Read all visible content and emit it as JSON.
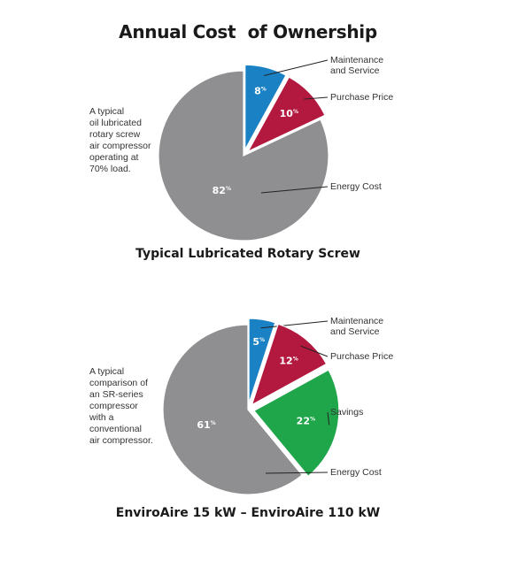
{
  "title": "Annual Cost  of Ownership",
  "chart_data": [
    {
      "type": "pie",
      "caption": "Typical Lubricated Rotary Screw",
      "description": [
        "A typical",
        "oil lubricated",
        "rotary screw",
        "air compressor",
        "operating at",
        "70% load."
      ],
      "slices": [
        {
          "label": [
            "Maintenance",
            "and Service"
          ],
          "value": 8,
          "color": "#1a82c4",
          "exploded": true
        },
        {
          "label": [
            "Purchase Price"
          ],
          "value": 10,
          "color": "#b3183f",
          "exploded": true
        },
        {
          "label": [
            "Energy Cost"
          ],
          "value": 82,
          "color": "#8f8f91",
          "exploded": false
        }
      ],
      "value_suffix": "%"
    },
    {
      "type": "pie",
      "caption": "EnviroAire 15 kW – EnviroAire 110 kW",
      "description": [
        "A typical",
        "comparison of",
        "an SR-series",
        "compressor",
        "with a",
        "conventional",
        "air compressor."
      ],
      "slices": [
        {
          "label": [
            "Maintenance",
            "and Service"
          ],
          "value": 5,
          "color": "#1a82c4",
          "exploded": true
        },
        {
          "label": [
            "Purchase Price"
          ],
          "value": 12,
          "color": "#b3183f",
          "exploded": true
        },
        {
          "label": [
            "Savings"
          ],
          "value": 22,
          "color": "#20a64a",
          "exploded": true
        },
        {
          "label": [
            "Energy Cost"
          ],
          "value": 61,
          "color": "#8f8f91",
          "exploded": false
        }
      ],
      "value_suffix": "%"
    }
  ]
}
